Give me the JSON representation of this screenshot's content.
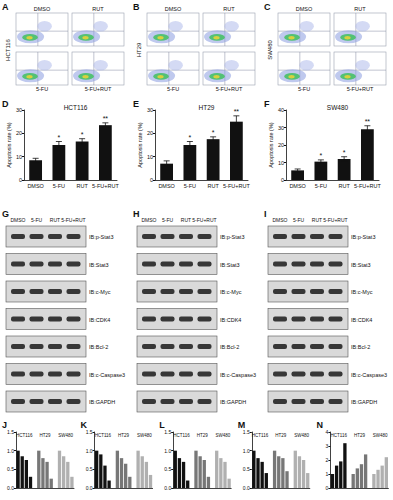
{
  "flow_cytometry": [
    {
      "panel_label": "A",
      "cell_line": "HCT116",
      "conditions": [
        "DMSO",
        "RUT",
        "5-FU",
        "5-FU+RUT"
      ]
    },
    {
      "panel_label": "B",
      "cell_line": "HT29",
      "conditions": [
        "DMSO",
        "RUT",
        "5-FU",
        "5-FU+RUT"
      ]
    },
    {
      "panel_label": "C",
      "cell_line": "SW480",
      "conditions": [
        "DMSO",
        "RUT",
        "5-FU",
        "5-FU+RUT"
      ]
    }
  ],
  "western_blots": [
    {
      "panel_label": "G",
      "cell_line": "HCT116",
      "lanes": [
        "DMSO",
        "5-FU",
        "RUT",
        "5-FU+RUT"
      ],
      "proteins": [
        "IB:p-Stat3",
        "IB:Stat3",
        "IB:c-Myc",
        "IB:CDK4",
        "IB:Bcl-2",
        "IB:c-Caspase3",
        "IB:GAPDH"
      ]
    },
    {
      "panel_label": "H",
      "cell_line": "HT29",
      "lanes": [
        "DMSO",
        "5-FU",
        "RUT",
        "5-FU+RUT"
      ],
      "proteins": [
        "IB:p-Stat3",
        "IB:Stat3",
        "IB:c-Myc",
        "IB:CDK4",
        "IB:Bcl-2",
        "IB:c-Caspase3",
        "IB:GAPDH"
      ]
    },
    {
      "panel_label": "I",
      "cell_line": "SW480",
      "lanes": [
        "DMSO",
        "5-FU",
        "RUT",
        "5-FU+RUT"
      ],
      "proteins": [
        "IB:p-Stat3",
        "IB:Stat3",
        "IB:c-Myc",
        "IB:CDK4",
        "IB:Bcl-2",
        "IB:c-Caspase3",
        "IB:GAPDH"
      ]
    }
  ],
  "chart_data": [
    {
      "panel_label": "D",
      "type": "bar",
      "title": "HCT116",
      "y_label": "Apoptosis rate (%)",
      "categories": [
        "DMSO",
        "5-FU",
        "RUT",
        "5-FU+RUT"
      ],
      "values": [
        8.5,
        15,
        16.5,
        23.5
      ],
      "errors": [
        0.8,
        1.5,
        1.2,
        1.0
      ],
      "significance": [
        null,
        "*",
        "*",
        "**"
      ],
      "color": "#111111",
      "ylim": [
        0,
        30
      ],
      "yticks": [
        0,
        10,
        20,
        30
      ],
      "grid": false
    },
    {
      "panel_label": "E",
      "type": "bar",
      "title": "HT29",
      "y_label": "Apoptosis rate (%)",
      "categories": [
        "DMSO",
        "5-FU",
        "RUT",
        "5-FU+RUT"
      ],
      "values": [
        7,
        15,
        17.5,
        25
      ],
      "errors": [
        1.2,
        1.5,
        1.0,
        2.5
      ],
      "significance": [
        null,
        "*",
        "*",
        "**"
      ],
      "color": "#111111",
      "ylim": [
        0,
        30
      ],
      "yticks": [
        0,
        10,
        20,
        30
      ],
      "grid": false
    },
    {
      "panel_label": "F",
      "type": "bar",
      "title": "SW480",
      "y_label": "Apoptosis rate (%)",
      "categories": [
        "DMSO",
        "5-FU",
        "RUT",
        "5-FU+RUT"
      ],
      "values": [
        5.5,
        10.5,
        12,
        29
      ],
      "errors": [
        0.8,
        1.0,
        1.3,
        2.0
      ],
      "significance": [
        null,
        "*",
        "*",
        "**"
      ],
      "color": "#111111",
      "ylim": [
        0,
        40
      ],
      "yticks": [
        0,
        10,
        20,
        30,
        40
      ],
      "grid": false
    },
    {
      "panel_label": "J",
      "type": "bar",
      "annotations": [
        "HCT116",
        "HT29",
        "SW480"
      ],
      "categories": [
        null,
        null,
        null,
        null,
        null,
        null,
        null,
        null,
        null,
        null,
        null,
        null,
        null,
        null
      ],
      "values": [
        1.0,
        0.85,
        0.75,
        0.3,
        null,
        1.0,
        0.8,
        0.7,
        0.25,
        null,
        1.0,
        0.85,
        0.7,
        0.3
      ],
      "colors": [
        "#111111",
        "#111111",
        "#111111",
        "#111111",
        null,
        "#777777",
        "#777777",
        "#777777",
        "#777777",
        null,
        "#b0b0b0",
        "#b0b0b0",
        "#b0b0b0",
        "#b0b0b0"
      ],
      "ylim": [
        0,
        1.5
      ],
      "yticks": [
        {
          "value": 0,
          "label": "0.0"
        },
        {
          "value": 0.5,
          "label": "0.5"
        },
        {
          "value": 1,
          "label": "1.0"
        },
        {
          "value": 1.5,
          "label": "1.5"
        }
      ],
      "grid": false
    },
    {
      "panel_label": "K",
      "type": "bar",
      "annotations": [
        "HCT116",
        "HT29",
        "SW480"
      ],
      "categories": [
        null,
        null,
        null,
        null,
        null,
        null,
        null,
        null,
        null,
        null,
        null,
        null,
        null,
        null
      ],
      "values": [
        1.0,
        0.9,
        0.6,
        0.2,
        null,
        1.0,
        0.8,
        0.65,
        0.3,
        null,
        1.0,
        0.85,
        0.7,
        0.35
      ],
      "colors": [
        "#111111",
        "#111111",
        "#111111",
        "#111111",
        null,
        "#777777",
        "#777777",
        "#777777",
        "#777777",
        null,
        "#b0b0b0",
        "#b0b0b0",
        "#b0b0b0",
        "#b0b0b0"
      ],
      "ylim": [
        0,
        1.5
      ],
      "yticks": [
        {
          "value": 0,
          "label": "0.0"
        },
        {
          "value": 0.5,
          "label": "0.5"
        },
        {
          "value": 1,
          "label": "1.0"
        },
        {
          "value": 1.5,
          "label": "1.5"
        }
      ],
      "grid": false
    },
    {
      "panel_label": "L",
      "type": "bar",
      "annotations": [
        "HCT116",
        "HT29",
        "SW480"
      ],
      "categories": [
        null,
        null,
        null,
        null,
        null,
        null,
        null,
        null,
        null,
        null,
        null,
        null,
        null,
        null
      ],
      "values": [
        1.0,
        0.8,
        0.7,
        0.2,
        null,
        1.0,
        0.85,
        0.75,
        0.3,
        null,
        1.0,
        0.8,
        0.7,
        0.25
      ],
      "colors": [
        "#111111",
        "#111111",
        "#111111",
        "#111111",
        null,
        "#777777",
        "#777777",
        "#777777",
        "#777777",
        null,
        "#b0b0b0",
        "#b0b0b0",
        "#b0b0b0",
        "#b0b0b0"
      ],
      "ylim": [
        0,
        1.5
      ],
      "yticks": [
        {
          "value": 0,
          "label": "0.0"
        },
        {
          "value": 0.5,
          "label": "0.5"
        },
        {
          "value": 1,
          "label": "1.0"
        },
        {
          "value": 1.5,
          "label": "1.5"
        }
      ],
      "grid": false
    },
    {
      "panel_label": "M",
      "type": "bar",
      "annotations": [
        "HCT116",
        "HT29",
        "SW480"
      ],
      "categories": [
        null,
        null,
        null,
        null,
        null,
        null,
        null,
        null,
        null,
        null,
        null,
        null,
        null,
        null
      ],
      "values": [
        1.0,
        0.8,
        0.7,
        0.4,
        null,
        1.0,
        0.85,
        0.8,
        0.45,
        null,
        1.0,
        0.85,
        0.75,
        0.4
      ],
      "colors": [
        "#111111",
        "#111111",
        "#111111",
        "#111111",
        null,
        "#777777",
        "#777777",
        "#777777",
        "#777777",
        null,
        "#b0b0b0",
        "#b0b0b0",
        "#b0b0b0",
        "#b0b0b0"
      ],
      "ylim": [
        0,
        1.5
      ],
      "yticks": [
        {
          "value": 0,
          "label": "0.0"
        },
        {
          "value": 0.5,
          "label": "0.5"
        },
        {
          "value": 1,
          "label": "1.0"
        },
        {
          "value": 1.5,
          "label": "1.5"
        }
      ],
      "grid": false
    },
    {
      "panel_label": "N",
      "type": "bar",
      "annotations": [
        "HCT116",
        "HT29",
        "SW480"
      ],
      "categories": [
        null,
        null,
        null,
        null,
        null,
        null,
        null,
        null,
        null,
        null,
        null,
        null,
        null,
        null
      ],
      "values": [
        1.0,
        1.6,
        1.9,
        3.2,
        null,
        1.0,
        1.4,
        1.7,
        2.4,
        null,
        1.0,
        1.3,
        1.6,
        2.2
      ],
      "colors": [
        "#111111",
        "#111111",
        "#111111",
        "#111111",
        null,
        "#777777",
        "#777777",
        "#777777",
        "#777777",
        null,
        "#b0b0b0",
        "#b0b0b0",
        "#b0b0b0",
        "#b0b0b0"
      ],
      "ylim": [
        0,
        4
      ],
      "yticks": [
        0,
        1,
        2,
        3,
        4
      ],
      "grid": false
    }
  ]
}
